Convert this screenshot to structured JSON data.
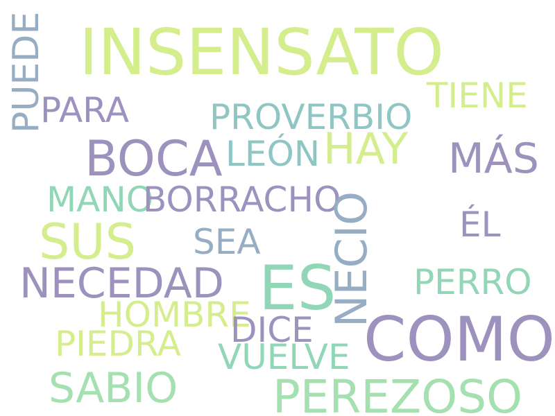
{
  "words": {
    "insensato": "INSENSATO",
    "puede": "PUEDE",
    "para": "PARA",
    "tiene": "TIENE",
    "proverbio": "PROVERBIO",
    "boca": "BOCA",
    "hay": "HAY",
    "leon": "LEÓN",
    "mas": "MÁS",
    "mano": "MANO",
    "borracho": "BORRACHO",
    "necio": "NECIO",
    "el": "ÉL",
    "sus": "SUS",
    "sea": "SEA",
    "necedad": "NECEDAD",
    "es": "ES",
    "perro": "PERRO",
    "hombre": "HOMBRE",
    "dice": "DICE",
    "como": "COMO",
    "piedra": "PIEDRA",
    "vuelve": "VUELVE",
    "sabio": "SABIO",
    "perezoso": "PEREZOSO"
  },
  "colors": {
    "green": "#d4ee8e",
    "purple": "#9c92bd",
    "teal": "#8fc6c3",
    "mint": "#91d6b6",
    "blue": "#97adc3",
    "mint_light": "#a5e0b0",
    "background": "#ffffff"
  }
}
